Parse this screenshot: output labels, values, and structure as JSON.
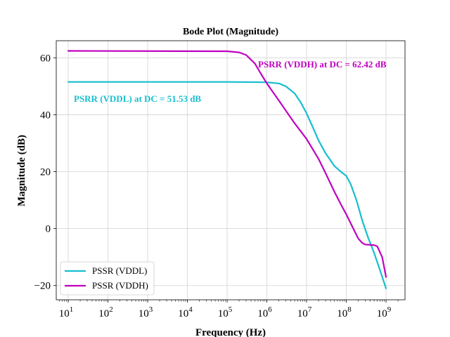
{
  "chart_data": {
    "type": "line",
    "title": "Bode Plot (Magnitude)",
    "xlabel": "Frequency (Hz)",
    "ylabel": "Magnitude (dB)",
    "xscale": "log",
    "xlim": [
      5,
      3000000000
    ],
    "ylim": [
      -25,
      66
    ],
    "x_ticks": [
      {
        "value": 10,
        "base": "10",
        "exp": "1"
      },
      {
        "value": 100,
        "base": "10",
        "exp": "2"
      },
      {
        "value": 1000,
        "base": "10",
        "exp": "3"
      },
      {
        "value": 10000,
        "base": "10",
        "exp": "4"
      },
      {
        "value": 100000,
        "base": "10",
        "exp": "5"
      },
      {
        "value": 1000000,
        "base": "10",
        "exp": "6"
      },
      {
        "value": 10000000,
        "base": "10",
        "exp": "7"
      },
      {
        "value": 100000000,
        "base": "10",
        "exp": "8"
      },
      {
        "value": 1000000000,
        "base": "10",
        "exp": "9"
      }
    ],
    "y_ticks": [
      {
        "value": -20,
        "label": "−20"
      },
      {
        "value": 0,
        "label": "0"
      },
      {
        "value": 20,
        "label": "20"
      },
      {
        "value": 40,
        "label": "40"
      },
      {
        "value": 60,
        "label": "60"
      }
    ],
    "grid": true,
    "legend_position": "lower-left",
    "series": [
      {
        "name": "PSSR (VDDL)",
        "color": "#17becf",
        "points": [
          [
            10,
            51.53
          ],
          [
            100000,
            51.53
          ],
          [
            1000000,
            51.4
          ],
          [
            2000000,
            51.0
          ],
          [
            3000000,
            50.0
          ],
          [
            5000000,
            47.5
          ],
          [
            7000000,
            44.5
          ],
          [
            10000000,
            40.5
          ],
          [
            15000000,
            35.0
          ],
          [
            20000000,
            31.0
          ],
          [
            30000000,
            26.5
          ],
          [
            50000000,
            22.0
          ],
          [
            70000000,
            20.2
          ],
          [
            100000000,
            18.5
          ],
          [
            130000000,
            15.5
          ],
          [
            180000000,
            10.0
          ],
          [
            250000000,
            3.0
          ],
          [
            350000000,
            -3.0
          ],
          [
            500000000,
            -8.5
          ],
          [
            700000000,
            -14.5
          ],
          [
            1000000000,
            -21.0
          ]
        ]
      },
      {
        "name": "PSSR (VDDH)",
        "color": "#c000c0",
        "points": [
          [
            10,
            62.42
          ],
          [
            100000,
            62.3
          ],
          [
            200000,
            61.9
          ],
          [
            300000,
            61.0
          ],
          [
            500000,
            58.0
          ],
          [
            700000,
            54.5
          ],
          [
            1000000,
            51.0
          ],
          [
            2000000,
            45.0
          ],
          [
            5000000,
            37.0
          ],
          [
            10000000,
            31.5
          ],
          [
            20000000,
            24.5
          ],
          [
            30000000,
            19.5
          ],
          [
            50000000,
            13.0
          ],
          [
            70000000,
            9.0
          ],
          [
            100000000,
            5.0
          ],
          [
            150000000,
            0.0
          ],
          [
            200000000,
            -3.5
          ],
          [
            250000000,
            -5.0
          ],
          [
            300000000,
            -5.6
          ],
          [
            500000000,
            -5.8
          ],
          [
            600000000,
            -6.2
          ],
          [
            800000000,
            -10.0
          ],
          [
            1000000000,
            -17.0
          ]
        ]
      }
    ],
    "annotations": [
      {
        "text": "PSRR (VDDH) at DC = 62.42 dB",
        "color": "#c000c0"
      },
      {
        "text": "PSRR (VDDL) at DC = 51.53 dB",
        "color": "#17becf"
      }
    ]
  }
}
